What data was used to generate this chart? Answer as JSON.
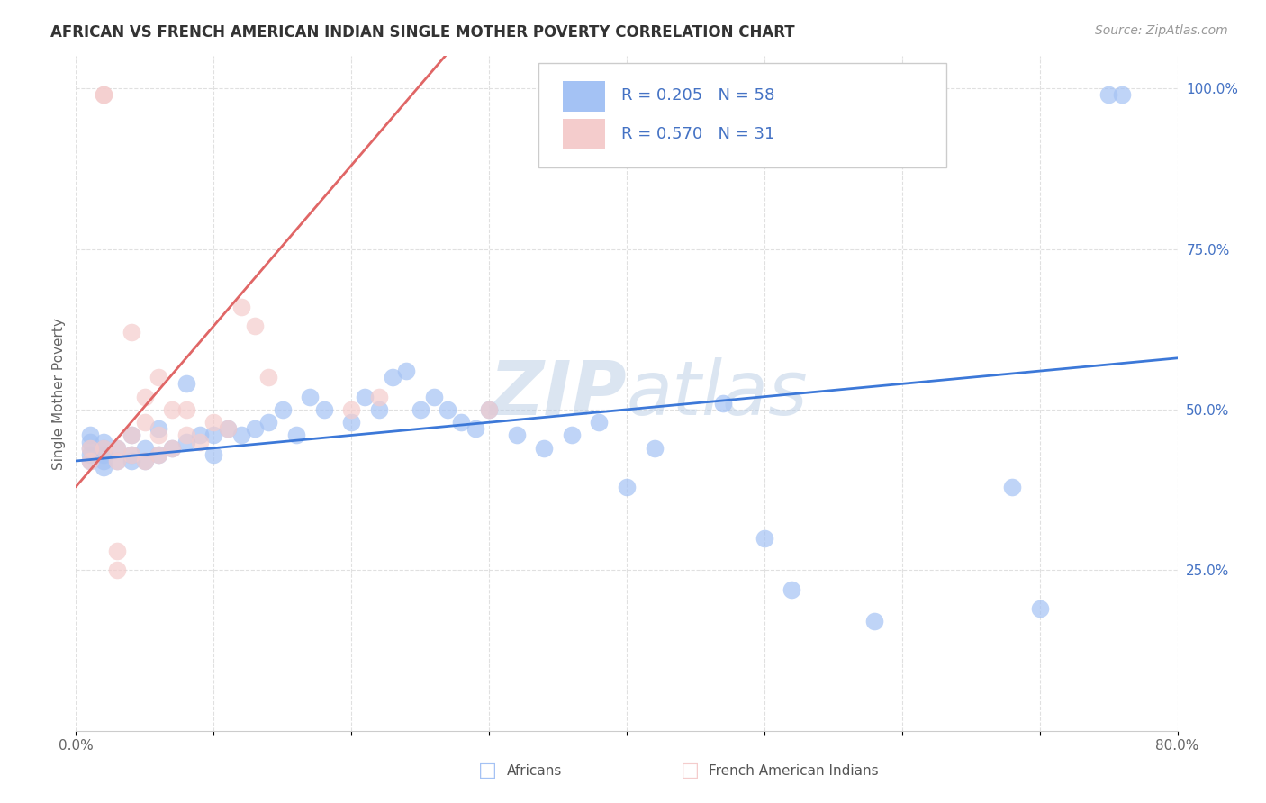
{
  "title": "AFRICAN VS FRENCH AMERICAN INDIAN SINGLE MOTHER POVERTY CORRELATION CHART",
  "source": "Source: ZipAtlas.com",
  "ylabel": "Single Mother Poverty",
  "xlim": [
    0.0,
    0.8
  ],
  "ylim": [
    0.0,
    1.05
  ],
  "african_color": "#a4c2f4",
  "french_color": "#f4cccc",
  "trendline_african_color": "#3c78d8",
  "trendline_french_color": "#e06666",
  "african_R": 0.205,
  "african_N": 58,
  "french_R": 0.57,
  "french_N": 31,
  "legend_color": "#4472c4",
  "watermark": "ZIPatlas",
  "watermark_color": "#c9daf8",
  "african_x": [
    0.01,
    0.01,
    0.01,
    0.01,
    0.01,
    0.02,
    0.02,
    0.02,
    0.02,
    0.02,
    0.03,
    0.03,
    0.04,
    0.04,
    0.04,
    0.05,
    0.05,
    0.06,
    0.06,
    0.07,
    0.08,
    0.08,
    0.09,
    0.1,
    0.1,
    0.11,
    0.12,
    0.13,
    0.14,
    0.15,
    0.16,
    0.17,
    0.18,
    0.2,
    0.21,
    0.22,
    0.23,
    0.24,
    0.25,
    0.26,
    0.27,
    0.28,
    0.29,
    0.3,
    0.32,
    0.34,
    0.36,
    0.38,
    0.4,
    0.42,
    0.47,
    0.5,
    0.52,
    0.58,
    0.68,
    0.7,
    0.75,
    0.76
  ],
  "african_y": [
    0.42,
    0.43,
    0.44,
    0.45,
    0.46,
    0.41,
    0.42,
    0.43,
    0.44,
    0.45,
    0.42,
    0.44,
    0.42,
    0.43,
    0.46,
    0.42,
    0.44,
    0.43,
    0.47,
    0.44,
    0.45,
    0.54,
    0.46,
    0.43,
    0.46,
    0.47,
    0.46,
    0.47,
    0.48,
    0.5,
    0.46,
    0.52,
    0.5,
    0.48,
    0.52,
    0.5,
    0.55,
    0.56,
    0.5,
    0.52,
    0.5,
    0.48,
    0.47,
    0.5,
    0.46,
    0.44,
    0.46,
    0.48,
    0.38,
    0.44,
    0.51,
    0.3,
    0.22,
    0.17,
    0.38,
    0.19,
    0.99,
    0.99
  ],
  "french_x": [
    0.01,
    0.01,
    0.02,
    0.02,
    0.02,
    0.03,
    0.03,
    0.03,
    0.03,
    0.04,
    0.04,
    0.04,
    0.05,
    0.05,
    0.05,
    0.06,
    0.06,
    0.06,
    0.07,
    0.07,
    0.08,
    0.08,
    0.09,
    0.1,
    0.11,
    0.12,
    0.13,
    0.14,
    0.2,
    0.22,
    0.3
  ],
  "french_y": [
    0.42,
    0.44,
    0.99,
    0.99,
    0.44,
    0.42,
    0.44,
    0.28,
    0.25,
    0.43,
    0.46,
    0.62,
    0.42,
    0.48,
    0.52,
    0.43,
    0.46,
    0.55,
    0.44,
    0.5,
    0.46,
    0.5,
    0.45,
    0.48,
    0.47,
    0.66,
    0.63,
    0.55,
    0.5,
    0.52,
    0.5
  ]
}
